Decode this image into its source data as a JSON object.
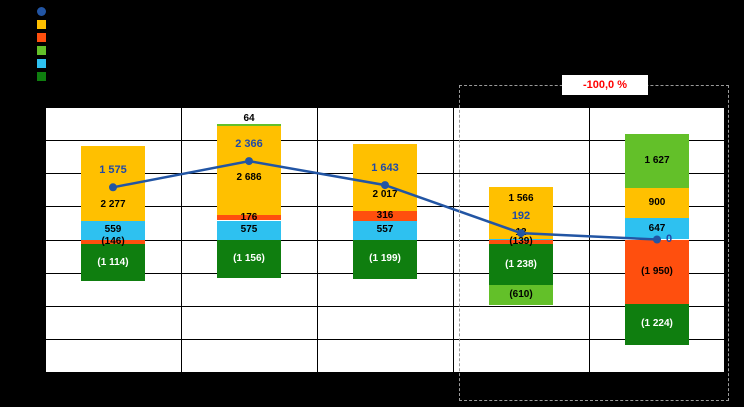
{
  "annotation": {
    "text": "-100,0 %",
    "color": "#FF0000"
  },
  "legend": {
    "items": [
      {
        "name": "line-series",
        "marker": "circle",
        "color": "#2255A4"
      },
      {
        "name": "amber-series",
        "marker": "square",
        "color": "#FFC000"
      },
      {
        "name": "orange-series",
        "marker": "square",
        "color": "#FF4F0E"
      },
      {
        "name": "light-green-series",
        "marker": "square",
        "color": "#63C029"
      },
      {
        "name": "cyan-series",
        "marker": "square",
        "color": "#2EC1F0"
      },
      {
        "name": "dark-green-series",
        "marker": "square",
        "color": "#0F7E0F"
      }
    ]
  },
  "chart_data": {
    "type": "bar",
    "subtype": "stacked-bar-with-line-overlay",
    "categories": [
      "",
      "",
      "",
      "",
      ""
    ],
    "ylim": [
      -4000,
      4000
    ],
    "grid": true,
    "grid_rows": 8,
    "legend_position": "top-left",
    "colors": {
      "amber": "#FFC000",
      "orange": "#FF4F0E",
      "light-green": "#63C029",
      "cyan": "#2EC1F0",
      "dark-green": "#0F7E0F"
    },
    "series": [
      {
        "name": "light-green",
        "values": [
          0,
          64,
          0,
          -610,
          1627
        ]
      },
      {
        "name": "amber",
        "values": [
          2277,
          2686,
          2017,
          1566,
          900
        ]
      },
      {
        "name": "orange",
        "values": [
          -146,
          176,
          316,
          -139,
          -1950
        ]
      },
      {
        "name": "cyan",
        "values": [
          559,
          575,
          557,
          12,
          647
        ]
      },
      {
        "name": "dark-green",
        "values": [
          -1114,
          -1156,
          -1199,
          -1238,
          -1224
        ]
      }
    ],
    "line": {
      "color": "#2255A4",
      "label_color": "#1F4AA8",
      "values": [
        1575,
        2366,
        1643,
        192,
        0
      ],
      "labels": [
        "1 575",
        "2 366",
        "1 643",
        "192",
        "0"
      ]
    },
    "bars": [
      {
        "segments": [
          {
            "series": "amber",
            "value": 2277,
            "label": "2 277",
            "dy": 22
          },
          {
            "series": "cyan",
            "value": 559,
            "label": "559"
          },
          {
            "series": "orange",
            "value": -146,
            "label": "(146)"
          },
          {
            "series": "dark-green",
            "value": -1114,
            "label": "(1 114)",
            "text": "#FFFFFF"
          }
        ]
      },
      {
        "segments": [
          {
            "series": "light-green",
            "value": 64,
            "label": "64",
            "dy": -6
          },
          {
            "series": "amber",
            "value": 2686,
            "label": "2 686",
            "dy": 8
          },
          {
            "series": "orange",
            "value": 176,
            "label": "176"
          },
          {
            "series": "cyan",
            "value": 575,
            "label": "575"
          },
          {
            "series": "dark-green",
            "value": -1156,
            "label": "(1 156)",
            "text": "#FFFFFF"
          }
        ]
      },
      {
        "segments": [
          {
            "series": "amber",
            "value": 2017,
            "label": "2 017",
            "dy": 18
          },
          {
            "series": "orange",
            "value": 316,
            "label": "316"
          },
          {
            "series": "cyan",
            "value": 557,
            "label": "557"
          },
          {
            "series": "dark-green",
            "value": -1199,
            "label": "(1 199)",
            "text": "#FFFFFF"
          }
        ]
      },
      {
        "segments": [
          {
            "series": "amber",
            "value": 1566,
            "label": "1 566",
            "dy": -14
          },
          {
            "series": "cyan",
            "value": 12,
            "label": "12",
            "dy": -7
          },
          {
            "series": "orange",
            "value": -139,
            "label": "(139)"
          },
          {
            "series": "dark-green",
            "value": -1238,
            "label": "(1 238)",
            "text": "#FFFFFF"
          },
          {
            "series": "light-green",
            "value": -610,
            "label": "(610)"
          }
        ]
      },
      {
        "segments": [
          {
            "series": "light-green",
            "value": 1627,
            "label": "1 627"
          },
          {
            "series": "amber",
            "value": 900,
            "label": "900"
          },
          {
            "series": "cyan",
            "value": 647,
            "label": "647"
          },
          {
            "series": "orange",
            "value": -1950,
            "label": "(1 950)"
          },
          {
            "series": "dark-green",
            "value": -1224,
            "label": "(1 224)",
            "text": "#FFFFFF"
          }
        ]
      }
    ]
  }
}
